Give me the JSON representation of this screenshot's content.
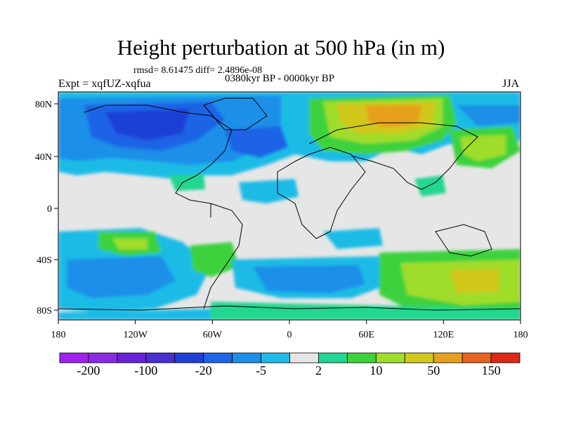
{
  "title": "Height perturbation at 500 hPa (in m)",
  "stats": "rmsd= 8.61475 diff= 2.4896e-08",
  "experiment": "Expt = xqfUZ-xqfua",
  "period": "0380kyr BP - 0000kyr BP",
  "season": "JJA",
  "lat_ticks": [
    "80N",
    "40N",
    "0",
    "40S",
    "80S"
  ],
  "lon_ticks": [
    "180",
    "120W",
    "60W",
    "0",
    "60E",
    "120E",
    "180"
  ],
  "colorbar": {
    "colors": [
      "#a020f0",
      "#8a2be2",
      "#6a22d8",
      "#4b2ed0",
      "#1f3fd6",
      "#1e64e6",
      "#1e8fe8",
      "#1ebbe6",
      "#e6e6e6",
      "#20d690",
      "#3cd23c",
      "#a0dc2a",
      "#d2c81e",
      "#e6a01e",
      "#e6641e",
      "#dc2814"
    ],
    "labels": [
      "-200",
      "-100",
      "-20",
      "-5",
      "2",
      "10",
      "50",
      "150"
    ]
  }
}
